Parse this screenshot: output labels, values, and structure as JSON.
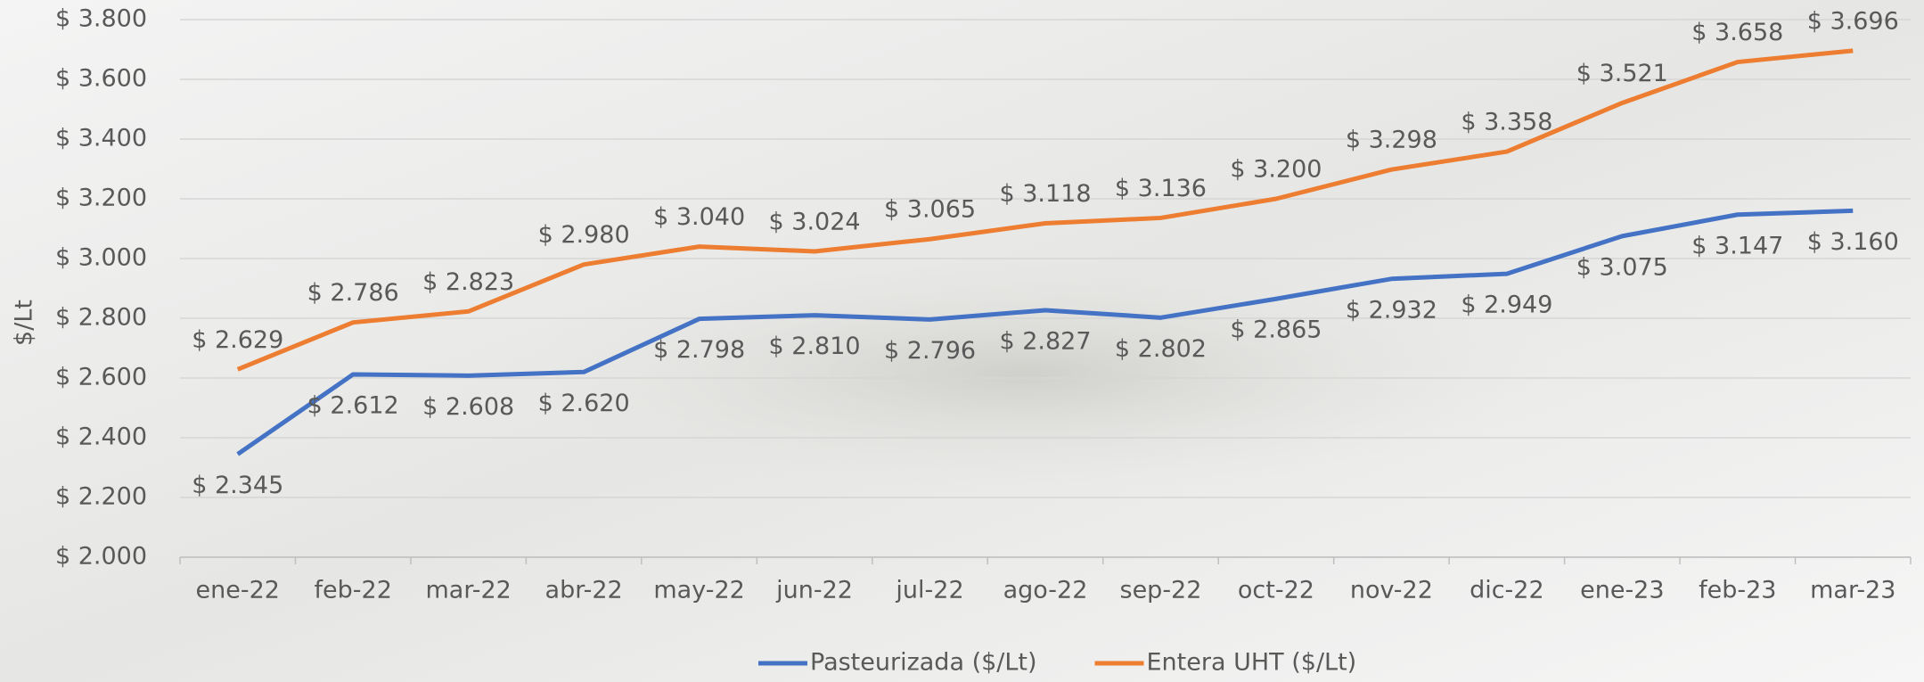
{
  "chart_data": {
    "type": "line",
    "y_label": "$/Lt",
    "categories": [
      "ene-22",
      "feb-22",
      "mar-22",
      "abr-22",
      "may-22",
      "jun-22",
      "jul-22",
      "ago-22",
      "sep-22",
      "oct-22",
      "nov-22",
      "dic-22",
      "ene-23",
      "feb-23",
      "mar-23"
    ],
    "series": [
      {
        "name": "Pasteurizada ($/Lt)",
        "color": "#4472c4",
        "values": [
          2345,
          2612,
          2608,
          2620,
          2798,
          2810,
          2796,
          2827,
          2802,
          2865,
          2932,
          2949,
          3075,
          3147,
          3160
        ],
        "value_labels": [
          "$ 2.345",
          "$ 2.612",
          "$ 2.608",
          "$ 2.620",
          "$ 2.798",
          "$ 2.810",
          "$ 2.796",
          "$ 2.827",
          "$ 2.802",
          "$ 2.865",
          "$ 2.932",
          "$ 2.949",
          "$ 3.075",
          "$ 3.147",
          "$ 3.160"
        ]
      },
      {
        "name": "Entera UHT ($/Lt)",
        "color": "#ed7d31",
        "values": [
          2629,
          2786,
          2823,
          2980,
          3040,
          3024,
          3065,
          3118,
          3136,
          3200,
          3298,
          3358,
          3521,
          3658,
          3696
        ],
        "value_labels": [
          "$ 2.629",
          "$ 2.786",
          "$ 2.823",
          "$ 2.980",
          "$ 3.040",
          "$ 3.024",
          "$ 3.065",
          "$ 3.118",
          "$ 3.136",
          "$ 3.200",
          "$ 3.298",
          "$ 3.358",
          "$ 3.521",
          "$ 3.658",
          "$ 3.696"
        ]
      }
    ],
    "ylim": [
      2000,
      3800
    ],
    "yticks": [
      {
        "value": 2000,
        "label": "$ 2.000"
      },
      {
        "value": 2200,
        "label": "$ 2.200"
      },
      {
        "value": 2400,
        "label": "$ 2.400"
      },
      {
        "value": 2600,
        "label": "$ 2.600"
      },
      {
        "value": 2800,
        "label": "$ 2.800"
      },
      {
        "value": 3000,
        "label": "$ 3.000"
      },
      {
        "value": 3200,
        "label": "$ 3.200"
      },
      {
        "value": 3400,
        "label": "$ 3.400"
      },
      {
        "value": 3600,
        "label": "$ 3.600"
      },
      {
        "value": 3800,
        "label": "$ 3.800"
      }
    ],
    "grid": true,
    "legend": "bottom"
  }
}
